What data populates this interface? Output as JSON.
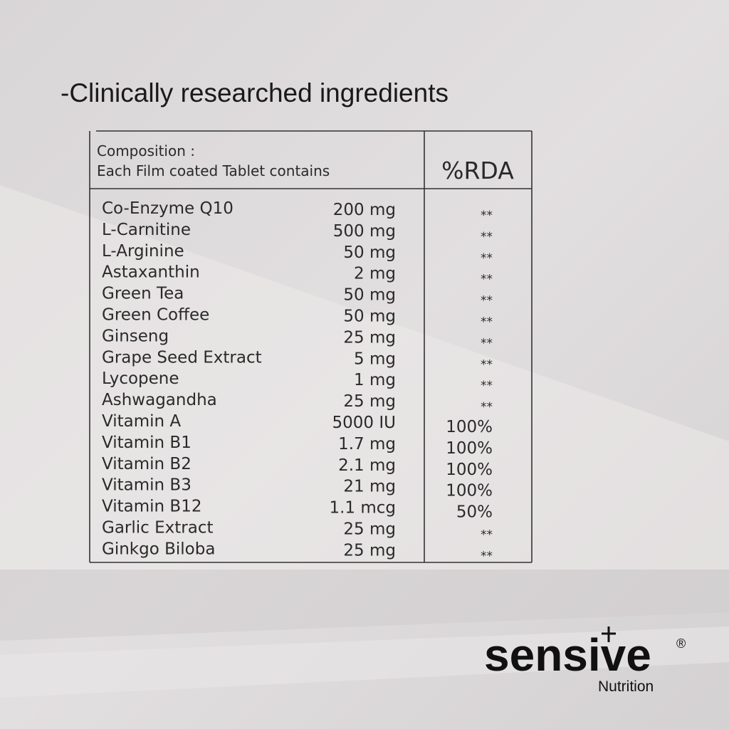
{
  "heading": "-Clinically researched ingredients",
  "table": {
    "header": {
      "composition": "Composition :",
      "subtitle": "Each Film coated Tablet contains",
      "rda": "%RDA"
    },
    "rows": [
      [
        "Co-Enzyme Q10",
        "200 mg",
        "**"
      ],
      [
        "L-Carnitine",
        "500 mg",
        "**"
      ],
      [
        "L-Arginine",
        "50 mg",
        "**"
      ],
      [
        "Astaxanthin",
        "2 mg",
        "**"
      ],
      [
        "Green Tea",
        "50 mg",
        "**"
      ],
      [
        "Green Coffee",
        "50 mg",
        "**"
      ],
      [
        "Ginseng",
        "25 mg",
        "**"
      ],
      [
        "Grape Seed Extract",
        "5 mg",
        "**"
      ],
      [
        "Lycopene",
        "1 mg",
        "**"
      ],
      [
        "Ashwagandha",
        "25 mg",
        "**"
      ],
      [
        "Vitamin A",
        "5000 IU",
        "100%"
      ],
      [
        "Vitamin B1",
        "1.7 mg",
        "100%"
      ],
      [
        "Vitamin B2",
        "2.1 mg",
        "100%"
      ],
      [
        "Vitamin B3",
        "21 mg",
        "100%"
      ],
      [
        "Vitamin B12",
        "1.1 mcg",
        "50%"
      ],
      [
        "Garlic Extract",
        "25 mg",
        "**"
      ],
      [
        "Ginkgo Biloba",
        "25 mg",
        "**"
      ]
    ]
  },
  "brand": {
    "name": "sensive",
    "mark": "®",
    "tagline": "Nutrition"
  }
}
